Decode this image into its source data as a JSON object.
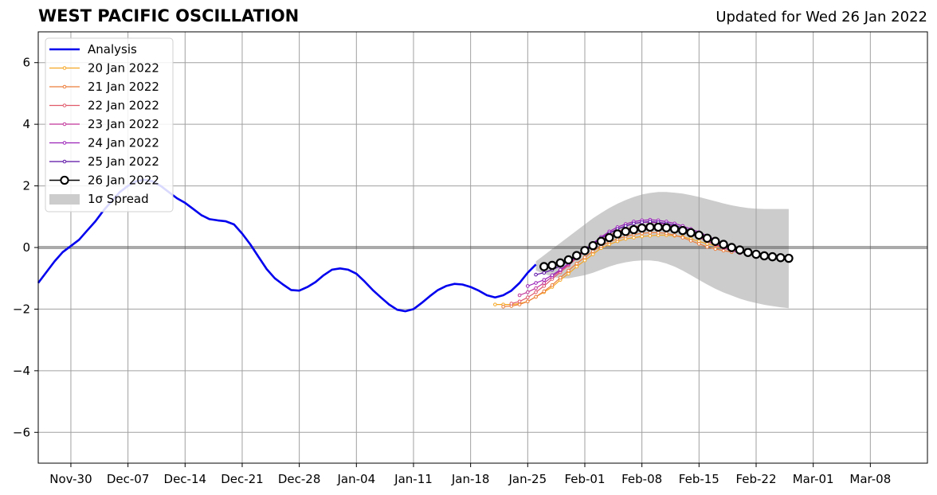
{
  "header": {
    "title": "WEST PACIFIC OSCILLATION",
    "subtitle": "Updated for Wed 26 Jan 2022"
  },
  "chart_data": {
    "type": "line",
    "title": "WEST PACIFIC OSCILLATION",
    "subtitle": "Updated for Wed 26 Jan 2022",
    "xlabel": "",
    "ylabel": "",
    "x_unit": "days",
    "xlim": [
      "2021-11-26",
      "2022-03-15"
    ],
    "ylim": [
      -7,
      7
    ],
    "x_ticks": [
      "2021-11-30",
      "2021-12-07",
      "2021-12-14",
      "2021-12-21",
      "2021-12-28",
      "2022-01-04",
      "2022-01-11",
      "2022-01-18",
      "2022-01-25",
      "2022-02-01",
      "2022-02-08",
      "2022-02-15",
      "2022-02-22",
      "2022-03-01",
      "2022-03-08"
    ],
    "x_tick_labels": [
      "Nov-30",
      "Dec-07",
      "Dec-14",
      "Dec-21",
      "Dec-28",
      "Jan-04",
      "Jan-11",
      "Jan-18",
      "Jan-25",
      "Feb-01",
      "Feb-08",
      "Feb-15",
      "Feb-22",
      "Mar-01",
      "Mar-08"
    ],
    "y_ticks": [
      -6,
      -4,
      -2,
      0,
      2,
      4,
      6
    ],
    "y_tick_labels": [
      "−6",
      "−4",
      "−2",
      "0",
      "2",
      "4",
      "6"
    ],
    "grid": true,
    "legend_position": "top-left",
    "analysis": {
      "name": "Analysis",
      "color": "#0000ee",
      "start": "2021-11-26",
      "values": [
        -1.15,
        -0.8,
        -0.45,
        -0.15,
        0.05,
        0.25,
        0.55,
        0.85,
        1.2,
        1.5,
        1.8,
        2.0,
        2.15,
        2.2,
        2.15,
        2.0,
        1.8,
        1.6,
        1.45,
        1.25,
        1.05,
        0.92,
        0.88,
        0.85,
        0.75,
        0.45,
        0.1,
        -0.3,
        -0.7,
        -1.0,
        -1.2,
        -1.38,
        -1.4,
        -1.28,
        -1.12,
        -0.9,
        -0.72,
        -0.68,
        -0.72,
        -0.85,
        -1.1,
        -1.38,
        -1.62,
        -1.85,
        -2.02,
        -2.07,
        -2.0,
        -1.8,
        -1.58,
        -1.38,
        -1.25,
        -1.18,
        -1.2,
        -1.28,
        -1.4,
        -1.55,
        -1.62,
        -1.55,
        -1.4,
        -1.15,
        -0.82,
        -0.55
      ]
    },
    "forecasts": [
      {
        "name": "20 Jan 2022",
        "color": "#f5a623",
        "start": "2022-01-21",
        "values": [
          -1.85,
          -1.85,
          -1.85,
          -1.82,
          -1.75,
          -1.6,
          -1.45,
          -1.28,
          -1.05,
          -0.85,
          -0.62,
          -0.42,
          -0.22,
          -0.02,
          0.1,
          0.2,
          0.28,
          0.32,
          0.36,
          0.38,
          0.4,
          0.4,
          0.38,
          0.35,
          0.28,
          0.2,
          0.12,
          0.05,
          -0.02,
          -0.08
        ]
      },
      {
        "name": "21 Jan 2022",
        "color": "#ec7d3a",
        "start": "2022-01-22",
        "values": [
          -1.92,
          -1.9,
          -1.85,
          -1.75,
          -1.6,
          -1.42,
          -1.22,
          -0.98,
          -0.75,
          -0.52,
          -0.32,
          -0.12,
          0.05,
          0.18,
          0.28,
          0.36,
          0.42,
          0.46,
          0.48,
          0.48,
          0.46,
          0.4,
          0.32,
          0.22,
          0.12,
          0.02,
          -0.05,
          -0.1,
          -0.15
        ]
      },
      {
        "name": "22 Jan 2022",
        "color": "#e05a6c",
        "start": "2022-01-23",
        "values": [
          -1.82,
          -1.75,
          -1.62,
          -1.45,
          -1.25,
          -1.02,
          -0.8,
          -0.58,
          -0.35,
          -0.12,
          0.08,
          0.25,
          0.4,
          0.52,
          0.6,
          0.66,
          0.7,
          0.72,
          0.72,
          0.68,
          0.62,
          0.52,
          0.42,
          0.32,
          0.2,
          0.08,
          -0.02,
          -0.1,
          -0.18
        ]
      },
      {
        "name": "23 Jan 2022",
        "color": "#c2369a",
        "start": "2022-01-24",
        "values": [
          -1.55,
          -1.45,
          -1.32,
          -1.15,
          -0.95,
          -0.75,
          -0.55,
          -0.32,
          -0.1,
          0.12,
          0.32,
          0.48,
          0.6,
          0.7,
          0.78,
          0.82,
          0.82,
          0.8,
          0.75,
          0.68,
          0.58,
          0.46,
          0.34,
          0.22,
          0.1,
          0.0,
          -0.1,
          -0.18
        ]
      },
      {
        "name": "24 Jan 2022",
        "color": "#9b22b8",
        "start": "2022-01-25",
        "values": [
          -1.25,
          -1.15,
          -1.05,
          -0.9,
          -0.72,
          -0.52,
          -0.3,
          -0.08,
          0.14,
          0.34,
          0.52,
          0.66,
          0.76,
          0.84,
          0.88,
          0.9,
          0.88,
          0.84,
          0.78,
          0.7,
          0.6,
          0.5,
          0.38,
          0.25,
          0.12,
          0.0,
          -0.1,
          -0.18
        ]
      },
      {
        "name": "25 Jan 2022",
        "color": "#5a0fa5",
        "start": "2022-01-26",
        "values": [
          -0.88,
          -0.82,
          -0.72,
          -0.6,
          -0.45,
          -0.28,
          -0.08,
          0.12,
          0.3,
          0.46,
          0.6,
          0.7,
          0.78,
          0.82,
          0.84,
          0.82,
          0.78,
          0.72,
          0.64,
          0.55,
          0.45,
          0.34,
          0.22,
          0.1,
          -0.02,
          -0.12,
          -0.2
        ]
      },
      {
        "name": "26 Jan 2022",
        "color": "#000000",
        "start": "2022-01-27",
        "values": [
          -0.62,
          -0.58,
          -0.5,
          -0.4,
          -0.26,
          -0.1,
          0.06,
          0.2,
          0.32,
          0.44,
          0.52,
          0.58,
          0.63,
          0.66,
          0.66,
          0.64,
          0.6,
          0.55,
          0.48,
          0.4,
          0.3,
          0.2,
          0.1,
          0.0,
          -0.08,
          -0.16,
          -0.22,
          -0.27,
          -0.3,
          -0.33,
          -0.35
        ]
      }
    ],
    "spread": {
      "name": "1σ Spread",
      "color": "#cccccc",
      "start": "2022-01-26",
      "upper": [
        -0.45,
        -0.25,
        -0.05,
        0.15,
        0.35,
        0.55,
        0.75,
        0.95,
        1.12,
        1.28,
        1.42,
        1.54,
        1.64,
        1.72,
        1.77,
        1.8,
        1.8,
        1.78,
        1.75,
        1.7,
        1.64,
        1.57,
        1.5,
        1.43,
        1.37,
        1.32,
        1.28,
        1.26,
        1.25,
        1.25,
        1.25,
        1.25
      ],
      "lower": [
        -0.75,
        -0.85,
        -0.95,
        -1.0,
        -1.0,
        -0.95,
        -0.9,
        -0.82,
        -0.72,
        -0.62,
        -0.54,
        -0.48,
        -0.44,
        -0.42,
        -0.42,
        -0.45,
        -0.52,
        -0.62,
        -0.75,
        -0.9,
        -1.05,
        -1.2,
        -1.34,
        -1.46,
        -1.56,
        -1.66,
        -1.74,
        -1.8,
        -1.86,
        -1.9,
        -1.94,
        -1.97
      ]
    }
  }
}
